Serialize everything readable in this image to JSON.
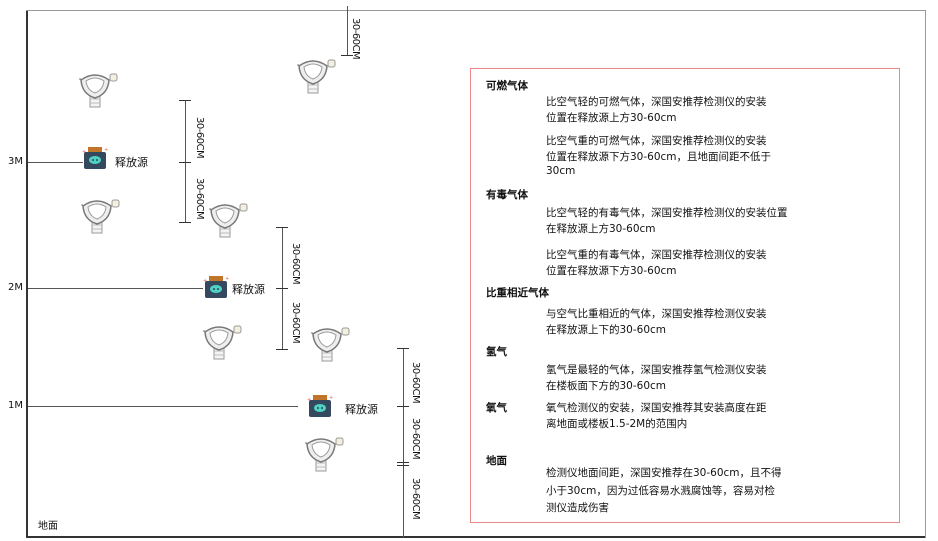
{
  "levels": {
    "m3": "3M",
    "m2": "2M",
    "m1": "1M"
  },
  "ground_label": "地面",
  "source_label": "释放源",
  "dimension_label": "30-60CM",
  "colors": {
    "frame": "#333333",
    "panel_border": "#e88a8a",
    "source_body": "#34495e",
    "source_cap": "#c0752a",
    "source_face": "#4fd1c5"
  },
  "icons": {
    "detector": "gas-detector-icon",
    "source": "release-source-icon"
  },
  "panel": [
    {
      "heading": "可燃气体",
      "paragraphs": [
        [
          "比空气轻的可燃气体，深国安推荐检测仪的安装",
          "位置在释放源上方30-60cm"
        ],
        [
          "比空气重的可燃气体，深国安推荐检测仪的安装",
          "位置在释放源下方30-60cm，且地面间距不低于",
          "30cm"
        ]
      ]
    },
    {
      "heading": "有毒气体",
      "paragraphs": [
        [
          "比空气轻的有毒气体，深国安推荐检测仪的安装位置",
          "在释放源上方30-60cm"
        ],
        [
          "比空气重的有毒气体，深国安推荐检测仪的安装",
          "位置在释放源下方30-60cm"
        ]
      ]
    },
    {
      "heading": "比重相近气体",
      "paragraphs": [
        [
          "与空气比重相近的气体，深国安推荐检测仪安装",
          "在释放源上下的30-60cm"
        ]
      ]
    },
    {
      "heading": "氢气",
      "paragraphs": [
        [
          "氢气是最轻的气体，深国安推荐氢气检测仪安装",
          "在楼板面下方的30-60cm"
        ]
      ]
    },
    {
      "heading": "氧气",
      "paragraphs": [
        [
          "氧气检测仪的安装，深国安推荐其安装高度在距",
          "离地面或楼板1.5-2M的范围内"
        ]
      ]
    },
    {
      "heading": "地面",
      "paragraphs": [
        [
          "检测仪地面间距，深国安推荐在30-60cm，且不得",
          "小于30cm，因为过低容易水溅腐蚀等，容易对检",
          "测仪造成伤害"
        ]
      ]
    }
  ]
}
